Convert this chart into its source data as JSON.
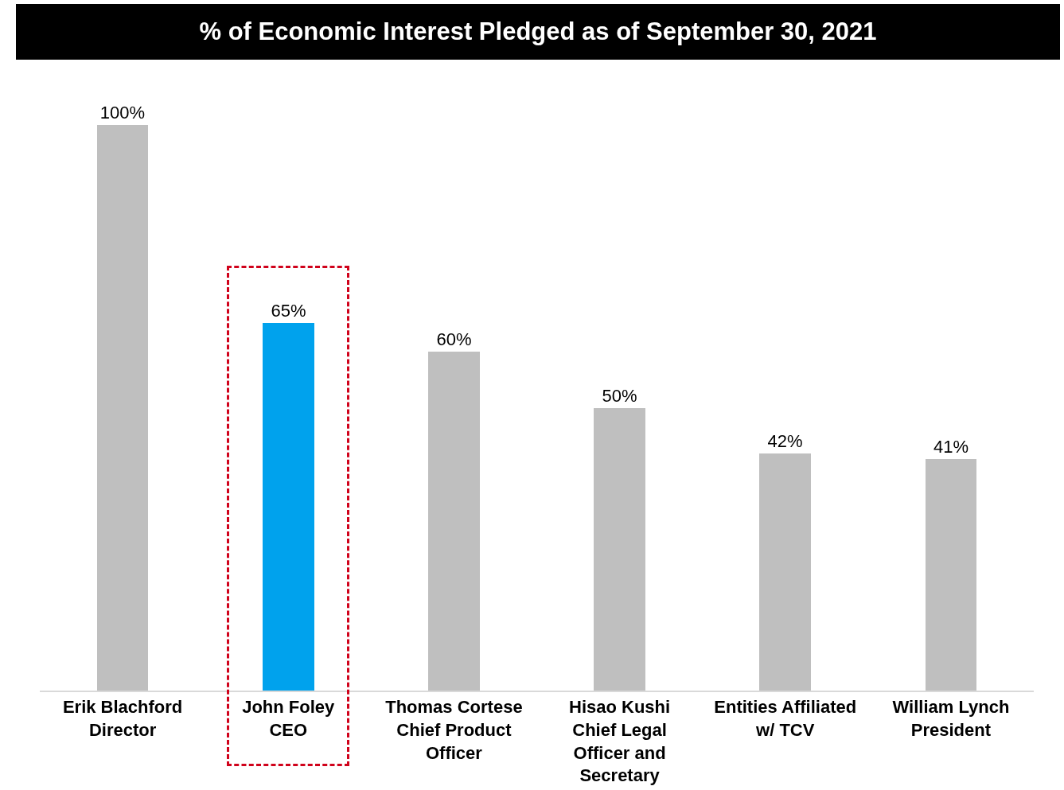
{
  "chart_data": {
    "type": "bar",
    "title": "% of Economic Interest Pledged as of September 30, 2021",
    "categories": [
      "Erik Blachford\nDirector",
      "John Foley\nCEO",
      "Thomas Cortese\nChief Product\nOfficer",
      "Hisao Kushi\nChief Legal\nOfficer and\nSecretary",
      "Entities Affiliated\nw/ TCV",
      "William Lynch\nPresident"
    ],
    "values": [
      100,
      65,
      60,
      50,
      42,
      41
    ],
    "colors": [
      "#bfbfbf",
      "#00a2ed",
      "#bfbfbf",
      "#bfbfbf",
      "#bfbfbf",
      "#bfbfbf"
    ],
    "value_labels": [
      "100%",
      "65%",
      "60%",
      "50%",
      "42%",
      "41%"
    ],
    "grid": false
  }
}
